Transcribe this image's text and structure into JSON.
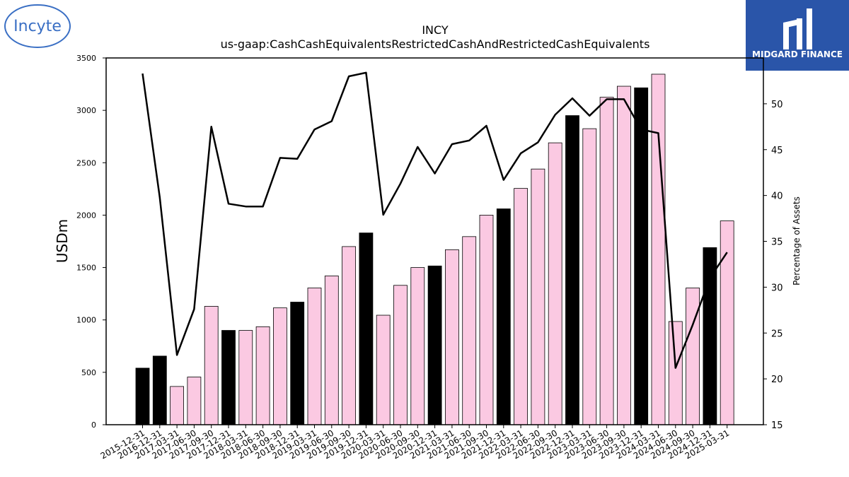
{
  "logos": {
    "left_text": "Incyte",
    "right_text": "MIDGARD FINANCE"
  },
  "chart_data": {
    "type": "bar",
    "title": "INCY",
    "subtitle": "us-gaap:CashCashEquivalentsRestrictedCashAndRestrictedCashEquivalents",
    "ylabel": "USDm",
    "y2label": "Percentage of Assets",
    "ylim": [
      0,
      3500
    ],
    "y2lim": [
      15,
      55
    ],
    "yticks": [
      0,
      500,
      1000,
      1500,
      2000,
      2500,
      3000,
      3500
    ],
    "y2ticks": [
      15,
      20,
      25,
      30,
      35,
      40,
      45,
      50
    ],
    "grid": false,
    "categories": [
      "2015-12-31",
      "2016-12-31",
      "2017-03-31",
      "2017-06-30",
      "2017-09-30",
      "2017-12-31",
      "2018-03-31",
      "2018-06-30",
      "2018-09-30",
      "2018-12-31",
      "2019-03-31",
      "2019-06-30",
      "2019-09-30",
      "2019-12-31",
      "2020-03-31",
      "2020-06-30",
      "2020-09-30",
      "2020-12-31",
      "2021-03-31",
      "2021-06-30",
      "2021-09-30",
      "2021-12-31",
      "2022-03-31",
      "2022-06-30",
      "2022-09-30",
      "2022-12-31",
      "2023-03-31",
      "2023-06-30",
      "2023-09-30",
      "2023-12-31",
      "2024-03-31",
      "2024-06-30",
      "2024-09-30",
      "2024-12-31",
      "2025-03-31"
    ],
    "series": [
      {
        "type": "bar",
        "values": [
          540,
          655,
          365,
          455,
          1130,
          900,
          900,
          935,
          1115,
          1170,
          1305,
          1420,
          1700,
          1830,
          1045,
          1330,
          1500,
          1515,
          1670,
          1795,
          2000,
          2060,
          2255,
          2440,
          2690,
          2950,
          2825,
          3125,
          3230,
          3215,
          3345,
          985,
          1305,
          1690,
          1945
        ],
        "colors": {
          "annual": "#000000",
          "quarterly": "#fbc9e2"
        },
        "annual_flags": [
          true,
          true,
          false,
          false,
          false,
          true,
          false,
          false,
          false,
          true,
          false,
          false,
          false,
          true,
          false,
          false,
          false,
          true,
          false,
          false,
          false,
          true,
          false,
          false,
          false,
          true,
          false,
          false,
          false,
          true,
          false,
          false,
          false,
          true,
          false
        ]
      },
      {
        "type": "line",
        "axis": "right",
        "color": "#000000",
        "values": [
          53.3,
          39.8,
          22.6,
          27.6,
          47.5,
          39.1,
          38.8,
          38.8,
          44.1,
          44.0,
          47.2,
          48.1,
          53.0,
          53.4,
          37.9,
          41.3,
          45.3,
          42.4,
          45.6,
          46.0,
          47.6,
          41.7,
          44.6,
          45.8,
          48.8,
          50.6,
          48.7,
          50.5,
          50.5,
          47.2,
          46.8,
          21.2,
          25.9,
          31.0,
          33.8
        ]
      }
    ]
  }
}
